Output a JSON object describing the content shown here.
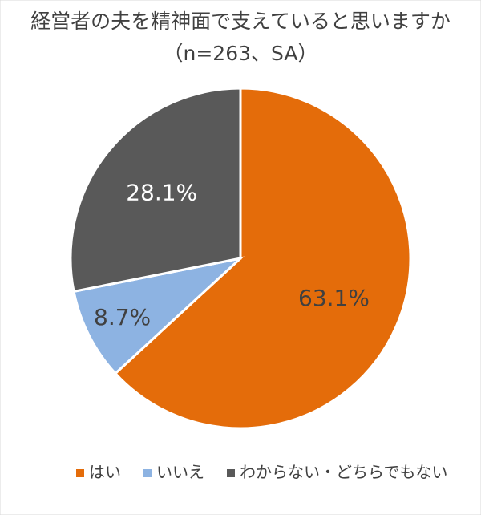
{
  "chart_data": {
    "type": "pie",
    "title": "経営者の夫を精神面で支えていると思いますか",
    "subtitle": "（n=263、SA）",
    "categories": [
      "はい",
      "いいえ",
      "わからない・どちらでもない"
    ],
    "values": [
      63.1,
      8.7,
      28.1
    ],
    "value_labels": [
      "63.1%",
      "8.7%",
      "28.1%"
    ],
    "colors": [
      "#e46c0a",
      "#8db3e2",
      "#595959"
    ],
    "legend": "bottom"
  }
}
